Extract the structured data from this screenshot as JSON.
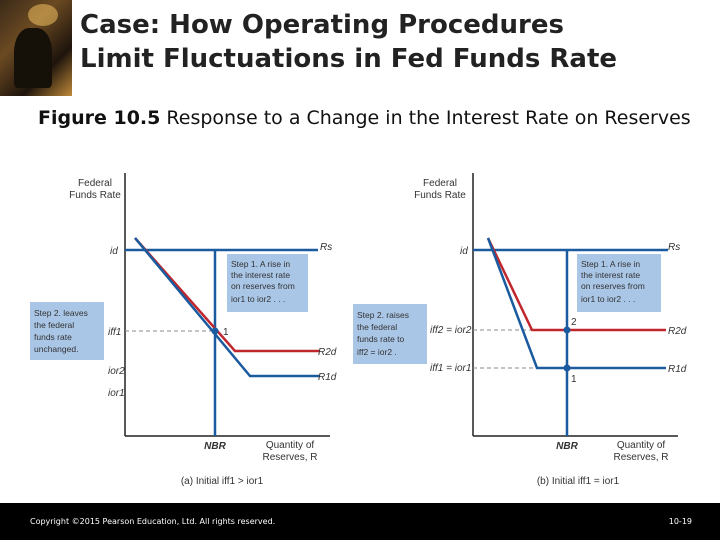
{
  "title": {
    "line1": "Case: How Operating Procedures",
    "line2": "Limit Fluctuations in Fed Funds Rate"
  },
  "caption": {
    "figure_label": "Figure 10.5",
    "text": " Response to a Change in the Interest Rate on Reserves"
  },
  "panel_a": {
    "y_axis_label": [
      "Federal",
      "Funds Rate"
    ],
    "x_axis_label": [
      "Quantity of",
      "Reserves, R"
    ],
    "nbr_label": "NBR",
    "id_label": "id",
    "iff1_label": "iff1",
    "ior2_label": "ior2",
    "ior1_label": "ior1",
    "rs_label": "Rs",
    "rd2_label": "R2d",
    "rd1_label": "R1d",
    "point_label": "1",
    "step1_lines": [
      "Step 1. A rise in",
      "the interest rate",
      "on reserves from",
      "ior1 to ior2 . . ."
    ],
    "step2_lines": [
      "Step 2. leaves",
      "the federal",
      "funds rate",
      "unchanged."
    ],
    "caption": "(a) Initial iff1 > ior1"
  },
  "panel_b": {
    "y_axis_label": [
      "Federal",
      "Funds Rate"
    ],
    "x_axis_label": [
      "Quantity of",
      "Reserves, R"
    ],
    "nbr_label": "NBR",
    "id_label": "id",
    "iff2_label": "iff2 = ior2",
    "iff1_label": "iff1 = ior1",
    "rs_label": "Rs",
    "rd2_label": "R2d",
    "rd1_label": "R1d",
    "point2_label": "2",
    "point1_label": "1",
    "step1_lines": [
      "Step 1. A rise in",
      "the interest rate",
      "on reserves from",
      "ior1 to ior2 . . ."
    ],
    "step2_lines": [
      "Step 2. raises",
      "the federal",
      "funds rate to",
      "iff2 = ior2 ."
    ],
    "caption": "(b) Initial iff1 = ior1"
  },
  "footer": {
    "copyright": "Copyright ©2015 Pearson Education, Ltd. All rights reserved.",
    "page_number": "10-19"
  },
  "colors": {
    "supply": "#1a5a9e",
    "demand_new": "#c0272d",
    "step_box": "#a9c6e6",
    "dashed": "#8a8a8a"
  }
}
